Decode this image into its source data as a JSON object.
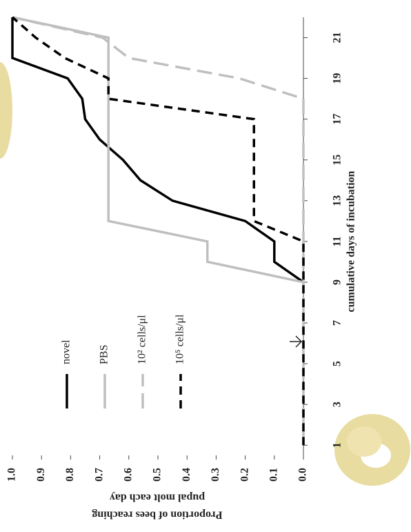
{
  "chart_data": {
    "type": "line",
    "xlabel": "cumulative days of incubation",
    "ylabel": [
      "Proportion of bees reaching",
      "pupal molt each day"
    ],
    "x": [
      1,
      2,
      3,
      4,
      5,
      6,
      7,
      8,
      9,
      10,
      11,
      12,
      13,
      14,
      15,
      16,
      17,
      18,
      19,
      20,
      21,
      22
    ],
    "xlim": [
      0.5,
      22
    ],
    "xticks": [
      1,
      3,
      5,
      7,
      9,
      11,
      13,
      15,
      17,
      19,
      21
    ],
    "ylim": [
      0,
      1
    ],
    "yticks": [
      {
        "value": 0,
        "label": "0.0"
      },
      0.1,
      0.2,
      0.3,
      0.4,
      0.5,
      0.6,
      0.7,
      0.8,
      0.9,
      {
        "value": 1,
        "label": "1.0"
      }
    ],
    "series": [
      {
        "name": "novel",
        "color": "#000000",
        "dash": "solid",
        "values": [
          null,
          null,
          null,
          null,
          null,
          null,
          null,
          null,
          0,
          0.1,
          0.1,
          0.2,
          0.45,
          0.56,
          0.62,
          0.7,
          0.75,
          0.76,
          0.81,
          1,
          1,
          1
        ]
      },
      {
        "name": "PBS",
        "color": "#bfbfbf",
        "dash": "solid",
        "values": [
          null,
          null,
          null,
          null,
          null,
          null,
          null,
          null,
          0,
          0.33,
          0.33,
          0.67,
          0.67,
          0.67,
          0.67,
          0.67,
          0.67,
          0.67,
          0.67,
          0.67,
          0.67,
          1
        ]
      },
      {
        "name": "10² cells/μl",
        "color": "#bfbfbf",
        "dash": "long",
        "values": [
          0,
          0,
          0,
          0,
          0,
          0,
          0,
          0,
          0,
          0,
          0,
          0,
          0,
          0,
          0,
          0,
          0,
          0,
          0.22,
          0.6,
          0.69,
          1
        ]
      },
      {
        "name": "10⁵ cells/μl",
        "color": "#000000",
        "dash": "short",
        "values": [
          0,
          0,
          0,
          0,
          0,
          0,
          0,
          0,
          0,
          0,
          0,
          0.17,
          0.17,
          0.17,
          0.17,
          0.17,
          0.17,
          0.67,
          0.67,
          0.82,
          0.92,
          1
        ]
      }
    ]
  }
}
